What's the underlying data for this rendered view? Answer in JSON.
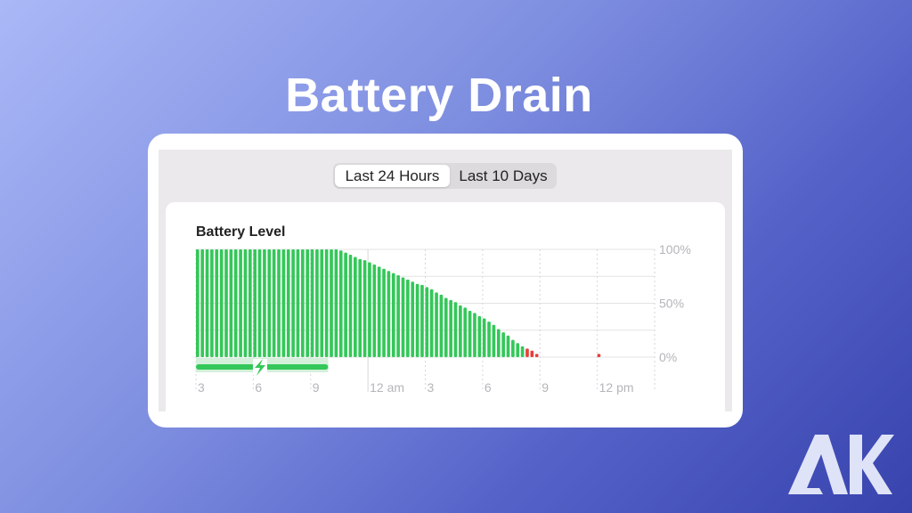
{
  "title": "Battery Drain",
  "segmented_control": {
    "options": [
      "Last 24 Hours",
      "Last 10 Days"
    ],
    "selected": "Last 24 Hours"
  },
  "logo": {
    "text": "AK"
  },
  "colors": {
    "bar": "#34c759",
    "low_bar": "#e5403a",
    "charging": "#34c759",
    "charging_bg": "#d4f0da"
  },
  "chart_data": {
    "type": "bar",
    "title": "Battery Level",
    "interval_minutes": 15,
    "x_tick_labels": [
      "3",
      "6",
      "9",
      "12 am",
      "3",
      "6",
      "9",
      "12 pm"
    ],
    "y_tick_labels": [
      "100%",
      "50%",
      "0%"
    ],
    "ylim": [
      0,
      100
    ],
    "grid": true,
    "low_threshold": 10,
    "charging": {
      "start": "3 pm",
      "end": "9:45 pm",
      "icon": "lightning-bolt-icon"
    },
    "values": [
      100,
      100,
      100,
      100,
      100,
      100,
      100,
      100,
      100,
      100,
      100,
      100,
      100,
      100,
      100,
      100,
      100,
      100,
      100,
      100,
      100,
      100,
      100,
      100,
      100,
      100,
      100,
      100,
      100,
      100,
      99,
      97,
      95,
      93,
      91,
      90,
      88,
      86,
      84,
      82,
      80,
      78,
      76,
      74,
      72,
      70,
      68,
      67,
      65,
      63,
      60,
      58,
      55,
      53,
      51,
      48,
      46,
      43,
      41,
      38,
      36,
      33,
      30,
      26,
      23,
      20,
      16,
      13,
      10,
      8,
      6,
      3,
      null,
      null,
      null,
      null,
      null,
      null,
      null,
      null,
      null,
      null,
      null,
      null,
      3,
      null,
      null,
      null,
      null,
      null,
      null,
      null,
      null,
      null,
      null,
      null
    ]
  }
}
